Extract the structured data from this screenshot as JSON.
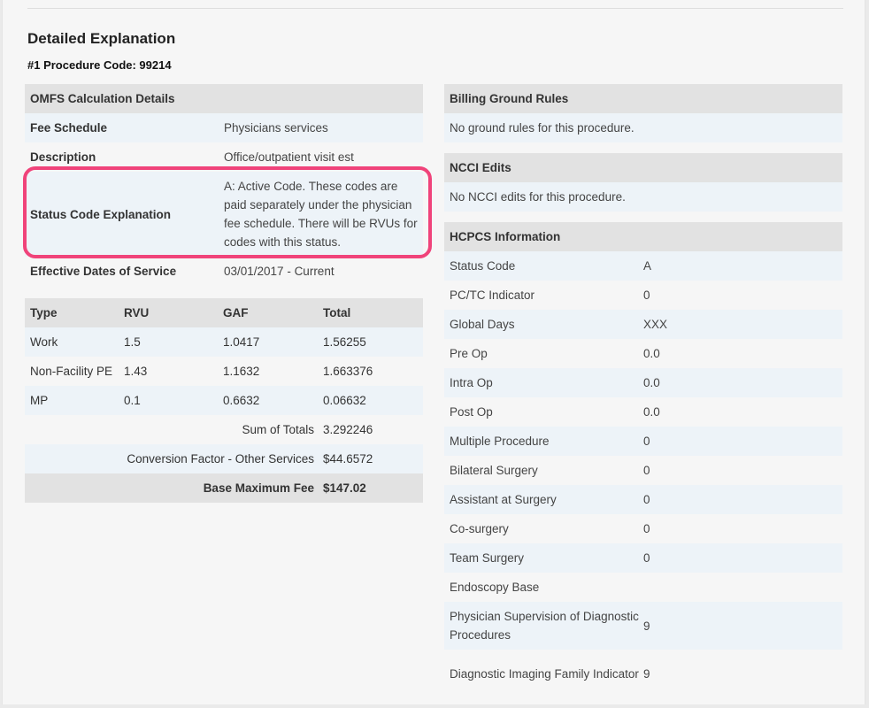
{
  "page": {
    "section_title": "Detailed Explanation",
    "procedure_label": "#1 Procedure Code: 99214"
  },
  "omfs": {
    "header": "OMFS Calculation Details",
    "rows": [
      {
        "label": "Fee Schedule",
        "value": "Physicians services"
      },
      {
        "label": "Description",
        "value": "Office/outpatient visit est"
      },
      {
        "label": "Status Code Explanation",
        "value": "A: Active Code. These codes are paid separately under the physician fee schedule. There will be RVUs for codes with this status."
      },
      {
        "label": "Effective Dates of Service",
        "value": "03/01/2017 - Current"
      }
    ]
  },
  "rvu_table": {
    "headers": [
      "Type",
      "RVU",
      "GAF",
      "Total"
    ],
    "rows": [
      [
        "Work",
        "1.5",
        "1.0417",
        "1.56255"
      ],
      [
        "Non-Facility PE",
        "1.43",
        "1.1632",
        "1.663376"
      ],
      [
        "MP",
        "0.1",
        "0.6632",
        "0.06632"
      ]
    ],
    "sum_label": "Sum of Totals",
    "sum_value": "3.292246",
    "conversion_label": "Conversion Factor - Other Services",
    "conversion_value": "$44.6572",
    "base_label": "Base Maximum Fee",
    "base_value": "$147.02"
  },
  "billing": {
    "header": "Billing Ground Rules",
    "text": "No ground rules for this procedure."
  },
  "ncci": {
    "header": "NCCI Edits",
    "text": "No NCCI edits for this procedure."
  },
  "hcpcs": {
    "header": "HCPCS Information",
    "rows": [
      {
        "label": "Status Code",
        "value": "A"
      },
      {
        "label": "PC/TC Indicator",
        "value": "0"
      },
      {
        "label": "Global Days",
        "value": "XXX"
      },
      {
        "label": "Pre Op",
        "value": "0.0"
      },
      {
        "label": "Intra Op",
        "value": "0.0"
      },
      {
        "label": "Post Op",
        "value": "0.0"
      },
      {
        "label": "Multiple Procedure",
        "value": "0"
      },
      {
        "label": "Bilateral Surgery",
        "value": "0"
      },
      {
        "label": "Assistant at Surgery",
        "value": "0"
      },
      {
        "label": "Co-surgery",
        "value": "0"
      },
      {
        "label": "Team Surgery",
        "value": "0"
      },
      {
        "label": "Endoscopy Base",
        "value": ""
      },
      {
        "label": "Physician Supervision of Diagnostic Procedures",
        "value": "9"
      },
      {
        "label": "Diagnostic Imaging Family Indicator",
        "value": "9"
      }
    ]
  },
  "colors": {
    "highlight": "#f0437a",
    "header_bg": "#e2e2e2",
    "alt_row_bg": "#edf3f8"
  }
}
